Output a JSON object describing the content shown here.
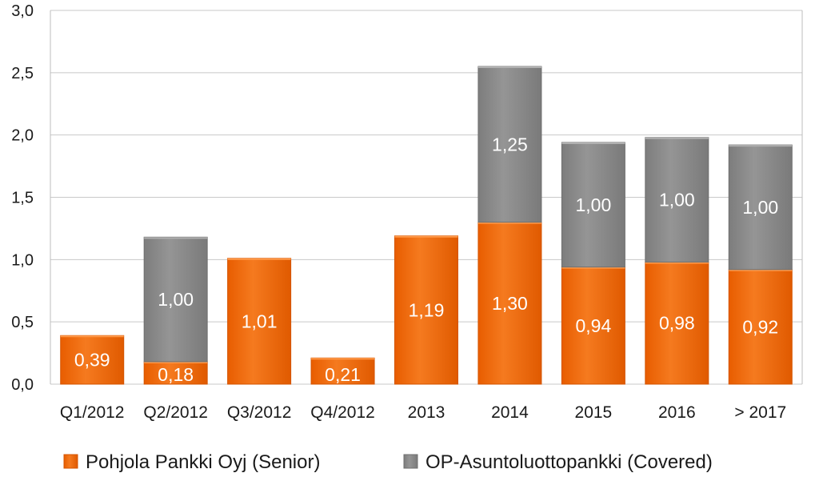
{
  "chart_data": {
    "type": "bar",
    "stacked": true,
    "categories": [
      "Q1/2012",
      "Q2/2012",
      "Q3/2012",
      "Q4/2012",
      "2013",
      "2014",
      "2015",
      "2016",
      "> 2017"
    ],
    "series": [
      {
        "name": "Pohjola Pankki Oyj (Senior)",
        "color": "#f26b0f",
        "values": [
          0.39,
          0.18,
          1.01,
          0.21,
          1.19,
          1.3,
          0.94,
          0.98,
          0.92
        ],
        "labels": [
          "0,39",
          "0,18",
          "1,01",
          "0,21",
          "1,19",
          "1,30",
          "0,94",
          "0,98",
          "0,92"
        ]
      },
      {
        "name": "OP-Asuntoluottopankki (Covered)",
        "color": "#8c8c8c",
        "values": [
          0,
          1.0,
          0,
          0,
          0,
          1.25,
          1.0,
          1.0,
          1.0
        ],
        "labels": [
          "",
          "1,00",
          "",
          "",
          "",
          "1,25",
          "1,00",
          "1,00",
          "1,00"
        ]
      }
    ],
    "ylim": [
      0,
      3.0
    ],
    "yticks": [
      0.0,
      0.5,
      1.0,
      1.5,
      2.0,
      2.5,
      3.0
    ],
    "ytick_labels": [
      "0,0",
      "0,5",
      "1,0",
      "1,5",
      "2,0",
      "2,5",
      "3,0"
    ],
    "grid": true,
    "legend_position": "bottom",
    "title": "",
    "xlabel": "",
    "ylabel": ""
  }
}
